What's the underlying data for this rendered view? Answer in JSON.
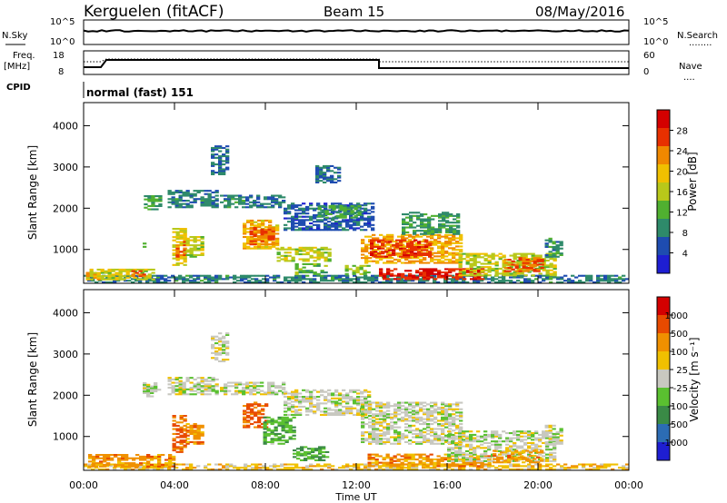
{
  "header": {
    "station": "Kerguelen (fitACF)",
    "beam": "Beam 15",
    "date": "08/May/2016"
  },
  "summary_panel": {
    "nsky_label": "N.Sky",
    "nsearch_label": "N.Search",
    "nsearch_legend": "........",
    "left_ticks": [
      "10^5",
      "10^0"
    ],
    "right_ticks": [
      "10^5",
      "10^0"
    ],
    "freq_label": "Freq.",
    "freq_unit": "[MHz]",
    "freq_ticks": [
      "18",
      "8"
    ],
    "nave_label": "Nave",
    "nave_legend": "....",
    "nave_ticks": [
      "60",
      "0"
    ],
    "cpid_label": "CPID",
    "cpid_text": "normal (fast) 151"
  },
  "colors": {
    "power_scale": [
      "#1e1ed2",
      "#1e4cb0",
      "#2e8a6a",
      "#50b030",
      "#b8c81a",
      "#f0c000",
      "#f08800",
      "#e83000",
      "#d40000"
    ],
    "velocity_scale": [
      "#1e1ed2",
      "#2c6cb4",
      "#3a8a46",
      "#5ac030",
      "#c8c8c0",
      "#f0c000",
      "#f09000",
      "#e84a00",
      "#d40000"
    ]
  },
  "chart_data": [
    {
      "type": "heatmap",
      "title": "Power",
      "ylabel": "Slant Range [km]",
      "xlabel": "",
      "x_tick_labels": [
        "00:00",
        "04:00",
        "08:00",
        "12:00",
        "16:00",
        "20:00",
        "00:00"
      ],
      "xlim_hours": [
        0,
        24
      ],
      "y_tick_labels": [
        "1000",
        "2000",
        "3000",
        "4000"
      ],
      "ylim": [
        180,
        4560
      ],
      "colorbar": {
        "label": "Power [dB]",
        "range": [
          0,
          32
        ],
        "tick_labels": [
          "4",
          "8",
          "12",
          "16",
          "20",
          "24",
          "28"
        ]
      },
      "regions": [
        {
          "t0": 0,
          "t1": 24,
          "r0": 180,
          "r1": 350,
          "value": 8
        },
        {
          "t0": 0.1,
          "t1": 3,
          "r0": 250,
          "r1": 520,
          "value": 17
        },
        {
          "t0": 2.1,
          "t1": 2.6,
          "r0": 330,
          "r1": 480,
          "value": 25
        },
        {
          "t0": 0.1,
          "t1": 0.7,
          "r0": 250,
          "r1": 420,
          "value": 20
        },
        {
          "t0": 2.6,
          "t1": 2.75,
          "r0": 1000,
          "r1": 1150,
          "value": 12
        },
        {
          "t0": 2.65,
          "t1": 3.3,
          "r0": 1950,
          "r1": 2300,
          "value": 10
        },
        {
          "t0": 3.9,
          "t1": 4.5,
          "r0": 600,
          "r1": 1500,
          "value": 18
        },
        {
          "t0": 4.05,
          "t1": 4.4,
          "r0": 800,
          "r1": 1200,
          "value": 24
        },
        {
          "t0": 4.5,
          "t1": 5.2,
          "r0": 800,
          "r1": 1300,
          "value": 16
        },
        {
          "t0": 3.7,
          "t1": 5.8,
          "r0": 2000,
          "r1": 2400,
          "value": 8
        },
        {
          "t0": 6.0,
          "t1": 8.8,
          "r0": 2000,
          "r1": 2300,
          "value": 8
        },
        {
          "t0": 7.0,
          "t1": 8.6,
          "r0": 1000,
          "r1": 1700,
          "value": 20
        },
        {
          "t0": 7.3,
          "t1": 8.4,
          "r0": 1100,
          "r1": 1500,
          "value": 25
        },
        {
          "t0": 8.5,
          "t1": 10.8,
          "r0": 700,
          "r1": 1050,
          "value": 16
        },
        {
          "t0": 9.3,
          "t1": 10.7,
          "r0": 380,
          "r1": 650,
          "value": 12
        },
        {
          "t0": 8.8,
          "t1": 12.8,
          "r0": 1450,
          "r1": 2100,
          "value": 6
        },
        {
          "t0": 10.3,
          "t1": 12.2,
          "r0": 1750,
          "r1": 2050,
          "value": 10
        },
        {
          "t0": 11.5,
          "t1": 12.5,
          "r0": 380,
          "r1": 600,
          "value": 14
        },
        {
          "t0": 12.2,
          "t1": 16.6,
          "r0": 650,
          "r1": 1350,
          "value": 21
        },
        {
          "t0": 12.6,
          "t1": 15.2,
          "r0": 800,
          "r1": 1200,
          "value": 27
        },
        {
          "t0": 13.0,
          "t1": 17.5,
          "r0": 260,
          "r1": 500,
          "value": 28
        },
        {
          "t0": 14.0,
          "t1": 16.5,
          "r0": 1350,
          "r1": 1900,
          "value": 10
        },
        {
          "t0": 16.5,
          "t1": 20.8,
          "r0": 350,
          "r1": 900,
          "value": 16
        },
        {
          "t0": 18.5,
          "t1": 20.2,
          "r0": 450,
          "r1": 800,
          "value": 25
        },
        {
          "t0": 20.3,
          "t1": 21.0,
          "r0": 800,
          "r1": 1250,
          "value": 9
        },
        {
          "t0": 5.6,
          "t1": 6.4,
          "r0": 2800,
          "r1": 3500,
          "value": 7
        },
        {
          "t0": 10.2,
          "t1": 11.3,
          "r0": 2600,
          "r1": 3000,
          "value": 7
        }
      ]
    },
    {
      "type": "heatmap",
      "title": "Velocity",
      "ylabel": "Slant Range [km]",
      "xlabel": "Time UT",
      "x_tick_labels": [
        "00:00",
        "04:00",
        "08:00",
        "12:00",
        "16:00",
        "20:00",
        "00:00"
      ],
      "xlim_hours": [
        0,
        24
      ],
      "y_tick_labels": [
        "1000",
        "2000",
        "3000",
        "4000"
      ],
      "ylim": [
        180,
        4560
      ],
      "colorbar": {
        "label": "Velocity [m s⁻¹]",
        "range": [
          0,
          9
        ],
        "tick_labels": [
          "1000",
          "500",
          "100",
          "25",
          "-25",
          "-100",
          "-500",
          "-1000"
        ]
      },
      "regions": [
        {
          "t0": 0,
          "t1": 24,
          "r0": 180,
          "r1": 300,
          "value": 5.5
        },
        {
          "t0": 0.2,
          "t1": 4.0,
          "r0": 250,
          "r1": 550,
          "value": 6.5
        },
        {
          "t0": 2.6,
          "t1": 3.3,
          "r0": 1950,
          "r1": 2300,
          "value": 4.5
        },
        {
          "t0": 3.9,
          "t1": 4.5,
          "r0": 600,
          "r1": 1500,
          "value": 7.2
        },
        {
          "t0": 4.5,
          "t1": 5.2,
          "r0": 800,
          "r1": 1300,
          "value": 6.5
        },
        {
          "t0": 3.7,
          "t1": 5.8,
          "r0": 2000,
          "r1": 2400,
          "value": 4.5
        },
        {
          "t0": 6.0,
          "t1": 8.8,
          "r0": 2000,
          "r1": 2300,
          "value": 4.5
        },
        {
          "t0": 7.0,
          "t1": 8.0,
          "r0": 1200,
          "r1": 1800,
          "value": 7.3
        },
        {
          "t0": 7.9,
          "t1": 9.2,
          "r0": 800,
          "r1": 1450,
          "value": 3.2
        },
        {
          "t0": 9.2,
          "t1": 10.7,
          "r0": 400,
          "r1": 750,
          "value": 3.0
        },
        {
          "t0": 8.8,
          "t1": 12.6,
          "r0": 1500,
          "r1": 2100,
          "value": 4.5
        },
        {
          "t0": 12.2,
          "t1": 16.6,
          "r0": 800,
          "r1": 1800,
          "value": 4.5
        },
        {
          "t0": 12.5,
          "t1": 17.8,
          "r0": 260,
          "r1": 550,
          "value": 6.5
        },
        {
          "t0": 16.0,
          "t1": 20.8,
          "r0": 380,
          "r1": 1100,
          "value": 4.5
        },
        {
          "t0": 18.0,
          "t1": 20.2,
          "r0": 350,
          "r1": 650,
          "value": 6.3
        },
        {
          "t0": 20.3,
          "t1": 21.0,
          "r0": 800,
          "r1": 1250,
          "value": 4.5
        },
        {
          "t0": 5.6,
          "t1": 6.4,
          "r0": 2800,
          "r1": 3500,
          "value": 4.5
        }
      ]
    }
  ]
}
